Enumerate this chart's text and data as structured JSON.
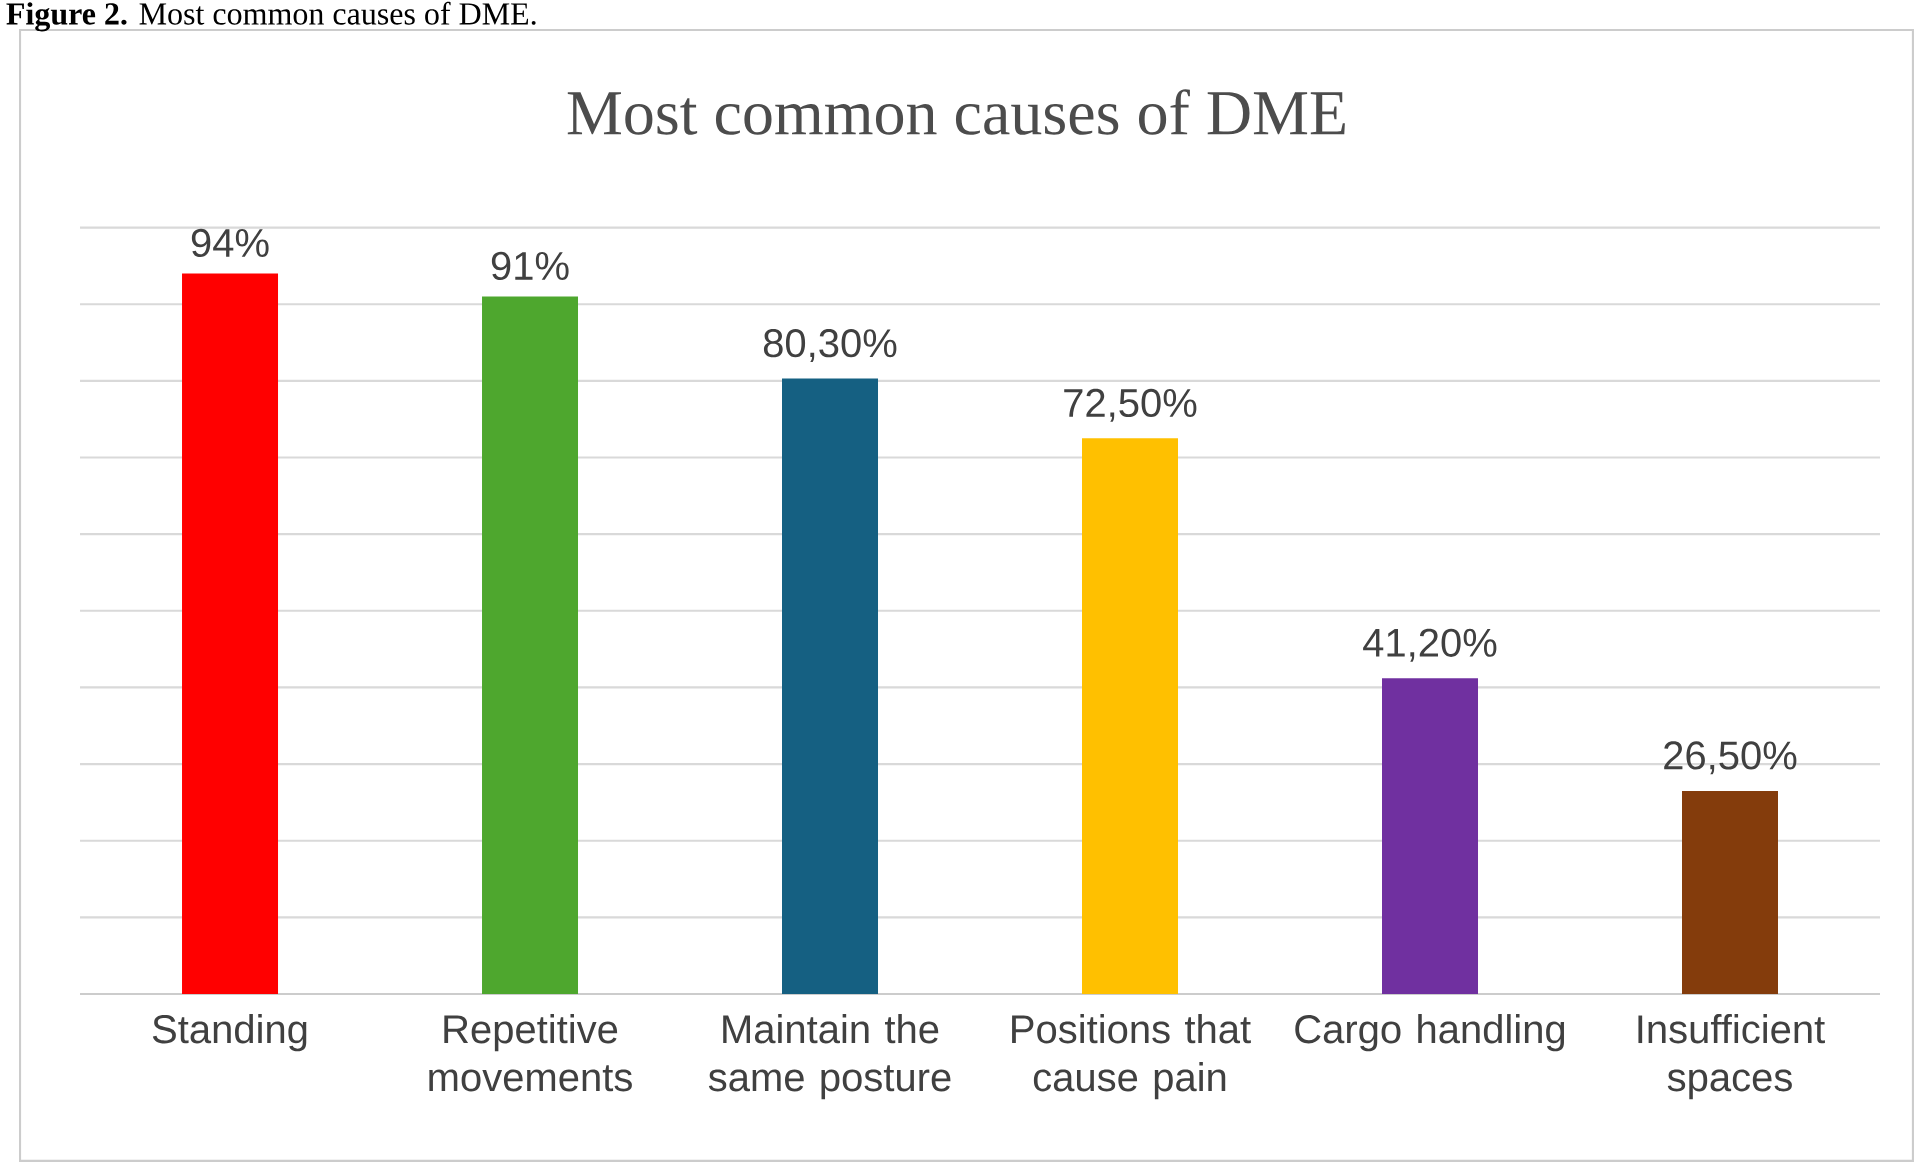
{
  "chart_data": {
    "type": "bar",
    "title": "Most common causes of DME",
    "annotations": [
      "**Figure 2.** Most common causes of DME."
    ],
    "categories": [
      "Standing",
      "Repetitive movements",
      "Maintain the same posture",
      "Positions that cause pain",
      "Cargo handling",
      "Insufficient spaces"
    ],
    "values": [
      94,
      91,
      80.3,
      72.5,
      41.2,
      26.5
    ],
    "value_labels": [
      "94%",
      "91%",
      "80,30%",
      "72,50%",
      "41,20%",
      "26,50%"
    ],
    "colors": [
      "#ff0000",
      "#4ea72e",
      "#156082",
      "#ffc000",
      "#7030a0",
      "#843c0c"
    ],
    "grid": "y"
  }
}
